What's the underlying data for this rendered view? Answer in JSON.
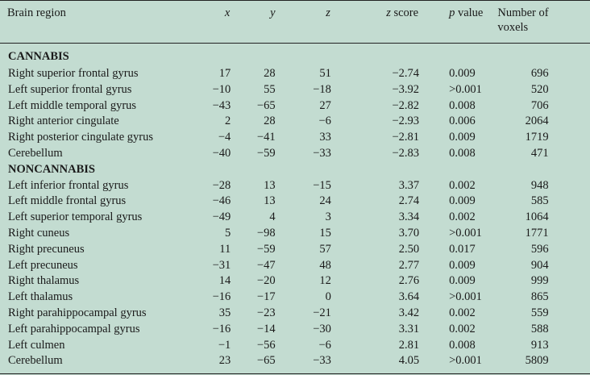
{
  "table": {
    "headers": {
      "region": "Brain region",
      "x": "x",
      "y": "y",
      "z": "z",
      "zscore_var": "z",
      "zscore_label": "score",
      "p_var": "p",
      "p_label": "value",
      "voxels_line1": "Number of",
      "voxels_line2": "voxels"
    },
    "groups": [
      {
        "label": "CANNABIS",
        "rows": [
          {
            "region": "Right superior frontal gyrus",
            "x": "17",
            "y": "28",
            "z": "51",
            "zscore": "−2.74",
            "p": "0.009",
            "voxels": "696"
          },
          {
            "region": "Left superior frontal gyrus",
            "x": "−10",
            "y": "55",
            "z": "−18",
            "zscore": "−3.92",
            "p": ">0.001",
            "voxels": "520"
          },
          {
            "region": "Left middle temporal gyrus",
            "x": "−43",
            "y": "−65",
            "z": "27",
            "zscore": "−2.82",
            "p": "0.008",
            "voxels": "706"
          },
          {
            "region": "Right anterior cingulate",
            "x": "2",
            "y": "28",
            "z": "−6",
            "zscore": "−2.93",
            "p": "0.006",
            "voxels": "2064"
          },
          {
            "region": "Right posterior cingulate gyrus",
            "x": "−4",
            "y": "−41",
            "z": "33",
            "zscore": "−2.81",
            "p": "0.009",
            "voxels": "1719"
          },
          {
            "region": "Cerebellum",
            "x": "−40",
            "y": "−59",
            "z": "−33",
            "zscore": "−2.83",
            "p": "0.008",
            "voxels": "471"
          }
        ]
      },
      {
        "label": "NONCANNABIS",
        "rows": [
          {
            "region": "Left inferior frontal gyrus",
            "x": "−28",
            "y": "13",
            "z": "−15",
            "zscore": "3.37",
            "p": "0.002",
            "voxels": "948"
          },
          {
            "region": "Left middle frontal gyrus",
            "x": "−46",
            "y": "13",
            "z": "24",
            "zscore": "2.74",
            "p": "0.009",
            "voxels": "585"
          },
          {
            "region": "Left superior temporal gyrus",
            "x": "−49",
            "y": "4",
            "z": "3",
            "zscore": "3.34",
            "p": "0.002",
            "voxels": "1064"
          },
          {
            "region": "Right cuneus",
            "x": "5",
            "y": "−98",
            "z": "15",
            "zscore": "3.70",
            "p": ">0.001",
            "voxels": "1771"
          },
          {
            "region": "Right precuneus",
            "x": "11",
            "y": "−59",
            "z": "57",
            "zscore": "2.50",
            "p": "0.017",
            "voxels": "596"
          },
          {
            "region": "Left precuneus",
            "x": "−31",
            "y": "−47",
            "z": "48",
            "zscore": "2.77",
            "p": "0.009",
            "voxels": "904"
          },
          {
            "region": "Right thalamus",
            "x": "14",
            "y": "−20",
            "z": "12",
            "zscore": "2.76",
            "p": "0.009",
            "voxels": "999"
          },
          {
            "region": "Left thalamus",
            "x": "−16",
            "y": "−17",
            "z": "0",
            "zscore": "3.64",
            "p": ">0.001",
            "voxels": "865"
          },
          {
            "region": "Right parahippocampal gyrus",
            "x": "35",
            "y": "−23",
            "z": "−21",
            "zscore": "3.42",
            "p": "0.002",
            "voxels": "559"
          },
          {
            "region": "Left parahippocampal gyrus",
            "x": "−16",
            "y": "−14",
            "z": "−30",
            "zscore": "3.31",
            "p": "0.002",
            "voxels": "588"
          },
          {
            "region": "Left culmen",
            "x": "−1",
            "y": "−56",
            "z": "−6",
            "zscore": "2.81",
            "p": "0.008",
            "voxels": "913"
          },
          {
            "region": "Cerebellum",
            "x": "23",
            "y": "−65",
            "z": "−33",
            "zscore": "4.05",
            "p": ">0.001",
            "voxels": "5809"
          }
        ]
      }
    ]
  }
}
